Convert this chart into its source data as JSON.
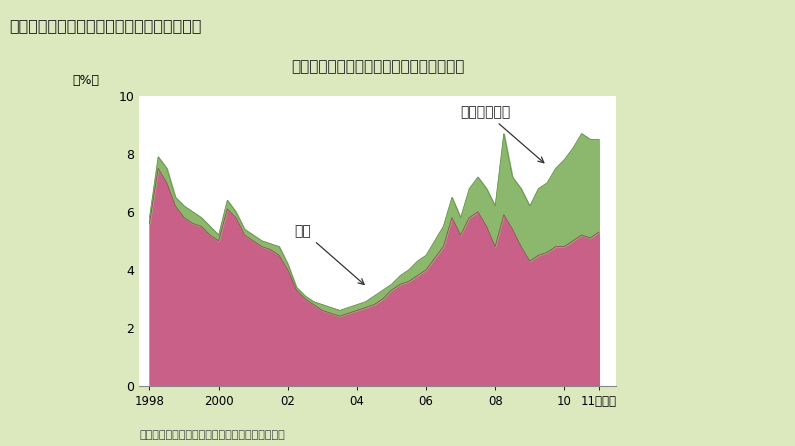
{
  "title": "我が国国債の外国保有比率は低水準で推移",
  "header": "第３－１－９図　我が国国債の外国保有比率",
  "ylabel": "（%）",
  "footer": "（備考）日本銀行「資金循環統計」により作成。",
  "background_color": "#dce8be",
  "header_bg": "#c5d98e",
  "plot_bg": "#ffffff",
  "ylim": [
    0,
    10
  ],
  "yticks": [
    0,
    2,
    4,
    6,
    8,
    10
  ],
  "label_kokusai": "国債",
  "label_tanki": "国庫短期証券",
  "color_kokusai": "#c96088",
  "color_tanki": "#8cb86e",
  "years": [
    1998.0,
    1998.25,
    1998.5,
    1998.75,
    1999.0,
    1999.25,
    1999.5,
    1999.75,
    2000.0,
    2000.25,
    2000.5,
    2000.75,
    2001.0,
    2001.25,
    2001.5,
    2001.75,
    2002.0,
    2002.25,
    2002.5,
    2002.75,
    2003.0,
    2003.25,
    2003.5,
    2003.75,
    2004.0,
    2004.25,
    2004.5,
    2004.75,
    2005.0,
    2005.25,
    2005.5,
    2005.75,
    2006.0,
    2006.25,
    2006.5,
    2006.75,
    2007.0,
    2007.25,
    2007.5,
    2007.75,
    2008.0,
    2008.25,
    2008.5,
    2008.75,
    2009.0,
    2009.25,
    2009.5,
    2009.75,
    2010.0,
    2010.25,
    2010.5,
    2010.75,
    2011.0
  ],
  "kokusai": [
    5.6,
    7.5,
    7.0,
    6.2,
    5.8,
    5.6,
    5.5,
    5.2,
    5.0,
    6.1,
    5.8,
    5.2,
    5.0,
    4.8,
    4.7,
    4.5,
    4.0,
    3.3,
    3.0,
    2.8,
    2.6,
    2.5,
    2.4,
    2.5,
    2.6,
    2.7,
    2.8,
    3.0,
    3.3,
    3.5,
    3.6,
    3.8,
    4.0,
    4.4,
    4.8,
    5.8,
    5.2,
    5.8,
    6.0,
    5.5,
    4.8,
    5.9,
    5.4,
    4.8,
    4.3,
    4.5,
    4.6,
    4.8,
    4.8,
    5.0,
    5.2,
    5.1,
    5.3
  ],
  "tanki": [
    5.8,
    7.9,
    7.5,
    6.5,
    6.2,
    6.0,
    5.8,
    5.5,
    5.2,
    6.4,
    6.0,
    5.4,
    5.2,
    5.0,
    4.9,
    4.8,
    4.2,
    3.4,
    3.1,
    2.9,
    2.8,
    2.7,
    2.6,
    2.7,
    2.8,
    2.9,
    3.1,
    3.3,
    3.5,
    3.8,
    4.0,
    4.3,
    4.5,
    5.0,
    5.5,
    6.5,
    5.8,
    6.8,
    7.2,
    6.8,
    6.2,
    8.7,
    7.2,
    6.8,
    6.2,
    6.8,
    7.0,
    7.5,
    7.8,
    8.2,
    8.7,
    8.5,
    8.5
  ]
}
